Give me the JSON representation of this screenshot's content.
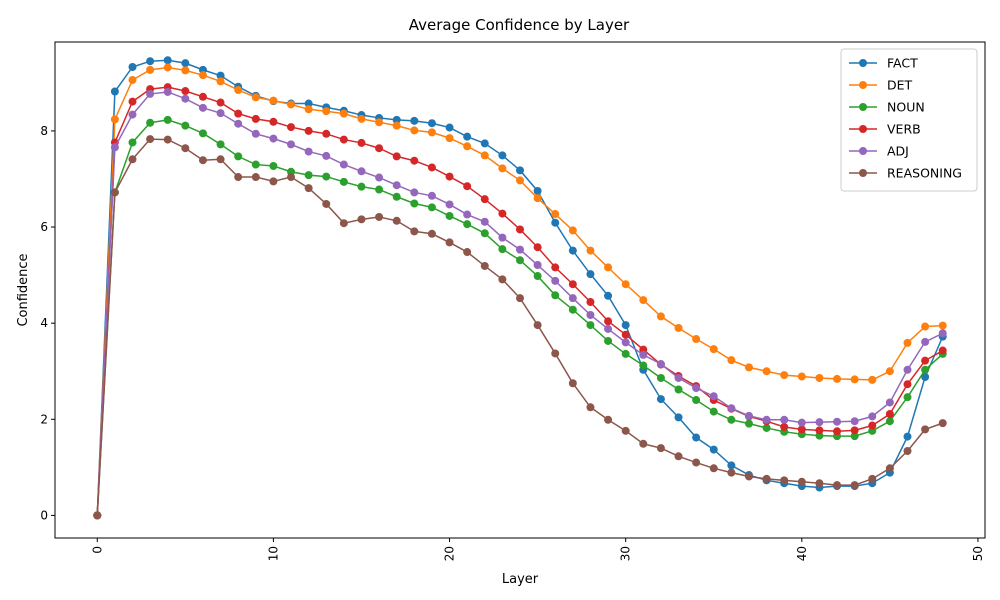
{
  "chart_data": {
    "type": "line",
    "title": "Average Confidence by Layer",
    "xlabel": "Layer",
    "ylabel": "Confidence",
    "xlim": [
      -2.4,
      50.4
    ],
    "ylim": [
      -0.47,
      9.85
    ],
    "xticks": [
      0,
      10,
      20,
      30,
      40,
      50
    ],
    "yticks": [
      0,
      2,
      4,
      6,
      8
    ],
    "x_tick_rotation": 90,
    "grid": false,
    "legend_position": "upper right",
    "x": [
      0,
      1,
      2,
      3,
      4,
      5,
      6,
      7,
      8,
      9,
      10,
      11,
      12,
      13,
      14,
      15,
      16,
      17,
      18,
      19,
      20,
      21,
      22,
      23,
      24,
      25,
      26,
      27,
      28,
      29,
      30,
      31,
      32,
      33,
      34,
      35,
      36,
      37,
      38,
      39,
      40,
      41,
      42,
      43,
      44,
      45,
      46,
      47,
      48
    ],
    "series": [
      {
        "name": "FACT",
        "color": "#1f77b4",
        "values": [
          0,
          8.82,
          9.33,
          9.45,
          9.47,
          9.41,
          9.27,
          9.15,
          8.92,
          8.73,
          8.62,
          8.57,
          8.57,
          8.49,
          8.42,
          8.33,
          8.27,
          8.23,
          8.21,
          8.16,
          8.07,
          7.88,
          7.74,
          7.49,
          7.18,
          6.75,
          6.09,
          5.51,
          5.02,
          4.57,
          3.96,
          3.03,
          2.42,
          2.04,
          1.62,
          1.37,
          1.04,
          0.84,
          0.73,
          0.67,
          0.61,
          0.58,
          0.61,
          0.61,
          0.67,
          0.89,
          1.64,
          2.88,
          3.72
        ]
      },
      {
        "name": "DET",
        "color": "#ff7f0e",
        "values": [
          0,
          8.24,
          9.06,
          9.27,
          9.32,
          9.26,
          9.16,
          9.03,
          8.85,
          8.7,
          8.63,
          8.55,
          8.45,
          8.41,
          8.36,
          8.25,
          8.18,
          8.11,
          8.01,
          7.97,
          7.85,
          7.68,
          7.49,
          7.22,
          6.97,
          6.6,
          6.27,
          5.93,
          5.51,
          5.16,
          4.81,
          4.48,
          4.14,
          3.9,
          3.67,
          3.46,
          3.23,
          3.08,
          3.0,
          2.92,
          2.89,
          2.86,
          2.84,
          2.83,
          2.82,
          3.0,
          3.59,
          3.93,
          3.95
        ]
      },
      {
        "name": "NOUN",
        "color": "#2ca02c",
        "values": [
          0,
          6.72,
          7.76,
          8.17,
          8.23,
          8.11,
          7.95,
          7.72,
          7.47,
          7.3,
          7.27,
          7.15,
          7.08,
          7.05,
          6.94,
          6.84,
          6.78,
          6.63,
          6.49,
          6.41,
          6.23,
          6.06,
          5.87,
          5.54,
          5.31,
          4.98,
          4.58,
          4.28,
          3.96,
          3.63,
          3.36,
          3.12,
          2.86,
          2.62,
          2.4,
          2.16,
          1.99,
          1.91,
          1.82,
          1.74,
          1.69,
          1.66,
          1.65,
          1.65,
          1.76,
          1.96,
          2.46,
          3.03,
          3.36
        ]
      },
      {
        "name": "VERB",
        "color": "#d62728",
        "values": [
          0,
          7.76,
          8.61,
          8.87,
          8.91,
          8.83,
          8.71,
          8.59,
          8.36,
          8.25,
          8.19,
          8.08,
          8.0,
          7.94,
          7.82,
          7.75,
          7.64,
          7.47,
          7.38,
          7.24,
          7.05,
          6.85,
          6.58,
          6.28,
          5.95,
          5.58,
          5.16,
          4.81,
          4.44,
          4.04,
          3.76,
          3.45,
          3.14,
          2.9,
          2.69,
          2.4,
          2.22,
          2.06,
          1.96,
          1.84,
          1.79,
          1.77,
          1.75,
          1.77,
          1.87,
          2.11,
          2.73,
          3.22,
          3.43
        ]
      },
      {
        "name": "ADJ",
        "color": "#9467bd",
        "values": [
          0,
          7.66,
          8.34,
          8.77,
          8.81,
          8.67,
          8.48,
          8.37,
          8.15,
          7.94,
          7.84,
          7.72,
          7.57,
          7.48,
          7.3,
          7.16,
          7.03,
          6.87,
          6.72,
          6.65,
          6.47,
          6.26,
          6.11,
          5.78,
          5.53,
          5.21,
          4.88,
          4.52,
          4.17,
          3.88,
          3.6,
          3.34,
          3.15,
          2.86,
          2.65,
          2.48,
          2.23,
          2.07,
          1.99,
          1.99,
          1.93,
          1.94,
          1.95,
          1.96,
          2.06,
          2.35,
          3.03,
          3.61,
          3.79
        ]
      },
      {
        "name": "REASONING",
        "color": "#8c564b",
        "values": [
          0,
          6.72,
          7.41,
          7.83,
          7.82,
          7.64,
          7.39,
          7.41,
          7.04,
          7.04,
          6.95,
          7.04,
          6.81,
          6.48,
          6.08,
          6.16,
          6.21,
          6.13,
          5.91,
          5.86,
          5.68,
          5.48,
          5.19,
          4.91,
          4.52,
          3.96,
          3.37,
          2.75,
          2.25,
          1.99,
          1.76,
          1.49,
          1.4,
          1.23,
          1.1,
          0.98,
          0.89,
          0.81,
          0.76,
          0.73,
          0.7,
          0.67,
          0.63,
          0.63,
          0.76,
          0.98,
          1.34,
          1.79,
          1.92
        ]
      }
    ]
  }
}
